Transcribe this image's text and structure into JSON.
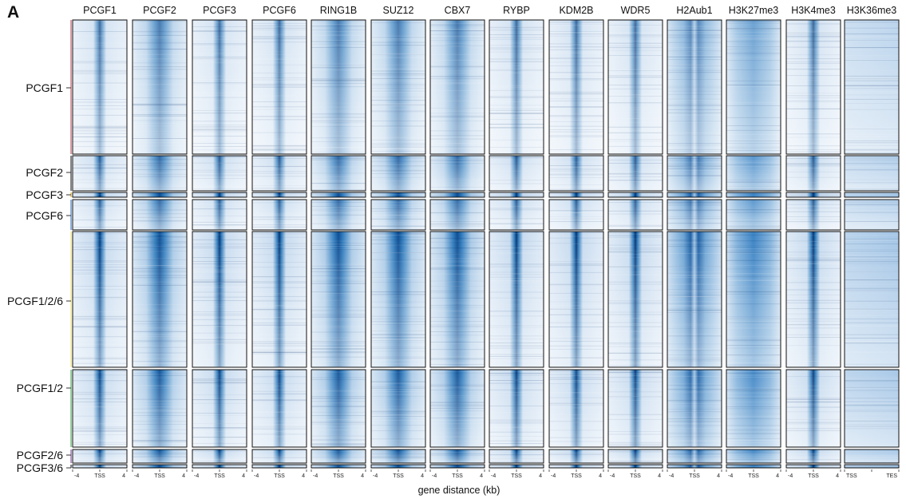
{
  "panel_label": "A",
  "chart_data": {
    "type": "heatmap",
    "columns": [
      {
        "title": "PCGF1",
        "start": "-4",
        "mid": "TSS",
        "end": "4",
        "profile": "narrow"
      },
      {
        "title": "PCGF2",
        "start": "-4",
        "mid": "TSS",
        "end": "4",
        "profile": "wide"
      },
      {
        "title": "PCGF3",
        "start": "-4",
        "mid": "TSS",
        "end": "4",
        "profile": "narrow"
      },
      {
        "title": "PCGF6",
        "start": "-4",
        "mid": "TSS",
        "end": "4",
        "profile": "narrow"
      },
      {
        "title": "RING1B",
        "start": "-4",
        "mid": "TSS",
        "end": "4",
        "profile": "wide"
      },
      {
        "title": "SUZ12",
        "start": "-4",
        "mid": "TSS",
        "end": "4",
        "profile": "wide"
      },
      {
        "title": "CBX7",
        "start": "-4",
        "mid": "TSS",
        "end": "4",
        "profile": "wide"
      },
      {
        "title": "RYBP",
        "start": "-4",
        "mid": "TSS",
        "end": "4",
        "profile": "narrow"
      },
      {
        "title": "KDM2B",
        "start": "-4",
        "mid": "TSS",
        "end": "4",
        "profile": "narrow"
      },
      {
        "title": "WDR5",
        "start": "-4",
        "mid": "TSS",
        "end": "4",
        "profile": "narrow"
      },
      {
        "title": "H2Aub1",
        "start": "-4",
        "mid": "TSS",
        "end": "4",
        "profile": "bimodal"
      },
      {
        "title": "H3K27me3",
        "start": "-4",
        "mid": "TSS",
        "end": "4",
        "profile": "broad"
      },
      {
        "title": "H3K4me3",
        "start": "-4",
        "mid": "TSS",
        "end": "4",
        "profile": "narrow"
      },
      {
        "title": "H3K36me3",
        "start": "TSS",
        "mid": "",
        "end": "TES",
        "profile": "genebody"
      }
    ],
    "row_groups": [
      {
        "label": "PCGF1",
        "color": "#c0606a"
      },
      {
        "label": "PCGF2",
        "color": "#333333"
      },
      {
        "label": "PCGF3",
        "color": "#e0b030"
      },
      {
        "label": "PCGF6",
        "color": "#4a7fc0"
      },
      {
        "label": "PCGF1/2/6",
        "color": "#f2e67a"
      },
      {
        "label": "PCGF1/2",
        "color": "#55b060"
      },
      {
        "label": "PCGF2/6",
        "color": "#8a5aa0"
      },
      {
        "label": "PCGF3/6",
        "color": "#333333"
      }
    ],
    "colors": {
      "low": "#ffffff",
      "high": "#08306b",
      "mid": "#2171b5"
    },
    "xlabel": "gene distance (kb)"
  }
}
